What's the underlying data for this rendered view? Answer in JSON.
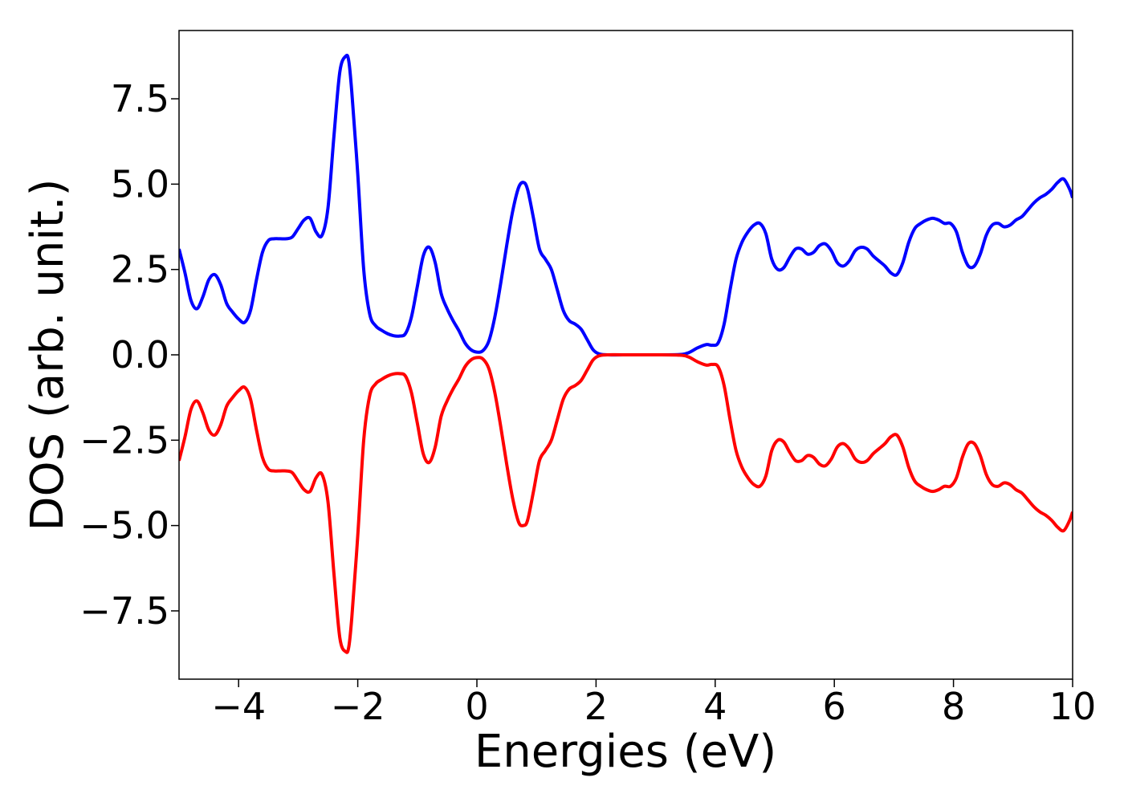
{
  "chart_data": {
    "type": "line",
    "title": "",
    "xlabel": "Energies (eV)",
    "ylabel": "DOS (arb. unit.)",
    "xlim": [
      -5,
      10
    ],
    "ylim": [
      -9.5,
      9.5
    ],
    "xticks": [
      -4,
      -2,
      0,
      2,
      4,
      6,
      8,
      10
    ],
    "xtick_labels": [
      "−4",
      "−2",
      "0",
      "2",
      "4",
      "6",
      "8",
      "10"
    ],
    "yticks": [
      7.5,
      5.0,
      2.5,
      0.0,
      -2.5,
      -5.0,
      -7.5
    ],
    "ytick_labels": [
      "7.5",
      "5.0",
      "2.5",
      "0.0",
      "−2.5",
      "−5.0",
      "−7.5"
    ],
    "grid": false,
    "legend": "none",
    "colors": {
      "up": "#0000ff",
      "down": "#ff0000",
      "axes": "#000000"
    },
    "series": [
      {
        "color": "#0000ff",
        "points": [
          [
            -5.0,
            3.1
          ],
          [
            -4.9,
            2.4
          ],
          [
            -4.8,
            1.6
          ],
          [
            -4.7,
            1.35
          ],
          [
            -4.6,
            1.7
          ],
          [
            -4.5,
            2.2
          ],
          [
            -4.4,
            2.35
          ],
          [
            -4.3,
            2.05
          ],
          [
            -4.2,
            1.5
          ],
          [
            -4.1,
            1.25
          ],
          [
            -4.0,
            1.05
          ],
          [
            -3.9,
            0.95
          ],
          [
            -3.8,
            1.3
          ],
          [
            -3.7,
            2.2
          ],
          [
            -3.6,
            3.0
          ],
          [
            -3.5,
            3.35
          ],
          [
            -3.4,
            3.4
          ],
          [
            -3.3,
            3.4
          ],
          [
            -3.2,
            3.4
          ],
          [
            -3.1,
            3.45
          ],
          [
            -3.0,
            3.7
          ],
          [
            -2.9,
            3.95
          ],
          [
            -2.8,
            4.0
          ],
          [
            -2.7,
            3.6
          ],
          [
            -2.6,
            3.5
          ],
          [
            -2.5,
            4.3
          ],
          [
            -2.4,
            6.4
          ],
          [
            -2.3,
            8.3
          ],
          [
            -2.2,
            8.75
          ],
          [
            -2.15,
            8.6
          ],
          [
            -2.1,
            7.7
          ],
          [
            -2.0,
            5.3
          ],
          [
            -1.9,
            2.5
          ],
          [
            -1.8,
            1.2
          ],
          [
            -1.7,
            0.85
          ],
          [
            -1.6,
            0.72
          ],
          [
            -1.5,
            0.62
          ],
          [
            -1.4,
            0.56
          ],
          [
            -1.3,
            0.55
          ],
          [
            -1.2,
            0.62
          ],
          [
            -1.1,
            1.1
          ],
          [
            -1.0,
            2.0
          ],
          [
            -0.9,
            2.9
          ],
          [
            -0.8,
            3.15
          ],
          [
            -0.7,
            2.7
          ],
          [
            -0.6,
            1.8
          ],
          [
            -0.5,
            1.35
          ],
          [
            -0.4,
            1.0
          ],
          [
            -0.3,
            0.7
          ],
          [
            -0.2,
            0.35
          ],
          [
            -0.1,
            0.15
          ],
          [
            0.0,
            0.08
          ],
          [
            0.1,
            0.12
          ],
          [
            0.2,
            0.4
          ],
          [
            0.3,
            1.1
          ],
          [
            0.4,
            2.1
          ],
          [
            0.5,
            3.2
          ],
          [
            0.6,
            4.2
          ],
          [
            0.7,
            4.9
          ],
          [
            0.78,
            5.05
          ],
          [
            0.85,
            4.85
          ],
          [
            0.95,
            4.0
          ],
          [
            1.05,
            3.1
          ],
          [
            1.15,
            2.8
          ],
          [
            1.25,
            2.5
          ],
          [
            1.35,
            1.9
          ],
          [
            1.45,
            1.3
          ],
          [
            1.55,
            1.0
          ],
          [
            1.65,
            0.9
          ],
          [
            1.75,
            0.75
          ],
          [
            1.85,
            0.45
          ],
          [
            1.95,
            0.15
          ],
          [
            2.05,
            0.03
          ],
          [
            2.2,
            0.0
          ],
          [
            2.6,
            0.0
          ],
          [
            3.0,
            0.0
          ],
          [
            3.4,
            0.01
          ],
          [
            3.55,
            0.06
          ],
          [
            3.7,
            0.2
          ],
          [
            3.85,
            0.3
          ],
          [
            3.95,
            0.28
          ],
          [
            4.05,
            0.35
          ],
          [
            4.15,
            0.9
          ],
          [
            4.25,
            1.9
          ],
          [
            4.35,
            2.8
          ],
          [
            4.45,
            3.3
          ],
          [
            4.55,
            3.6
          ],
          [
            4.65,
            3.8
          ],
          [
            4.75,
            3.85
          ],
          [
            4.85,
            3.55
          ],
          [
            4.95,
            2.8
          ],
          [
            5.05,
            2.5
          ],
          [
            5.15,
            2.55
          ],
          [
            5.25,
            2.85
          ],
          [
            5.35,
            3.1
          ],
          [
            5.45,
            3.1
          ],
          [
            5.55,
            2.95
          ],
          [
            5.65,
            3.0
          ],
          [
            5.75,
            3.2
          ],
          [
            5.85,
            3.25
          ],
          [
            5.95,
            3.05
          ],
          [
            6.05,
            2.7
          ],
          [
            6.15,
            2.6
          ],
          [
            6.25,
            2.75
          ],
          [
            6.35,
            3.05
          ],
          [
            6.45,
            3.15
          ],
          [
            6.55,
            3.1
          ],
          [
            6.65,
            2.9
          ],
          [
            6.75,
            2.75
          ],
          [
            6.85,
            2.6
          ],
          [
            6.95,
            2.4
          ],
          [
            7.05,
            2.35
          ],
          [
            7.15,
            2.7
          ],
          [
            7.25,
            3.3
          ],
          [
            7.35,
            3.7
          ],
          [
            7.45,
            3.85
          ],
          [
            7.55,
            3.95
          ],
          [
            7.65,
            4.0
          ],
          [
            7.75,
            3.95
          ],
          [
            7.85,
            3.85
          ],
          [
            7.95,
            3.85
          ],
          [
            8.05,
            3.6
          ],
          [
            8.15,
            3.0
          ],
          [
            8.25,
            2.6
          ],
          [
            8.35,
            2.6
          ],
          [
            8.45,
            2.95
          ],
          [
            8.55,
            3.5
          ],
          [
            8.65,
            3.8
          ],
          [
            8.75,
            3.85
          ],
          [
            8.85,
            3.75
          ],
          [
            8.95,
            3.8
          ],
          [
            9.05,
            3.95
          ],
          [
            9.15,
            4.05
          ],
          [
            9.25,
            4.25
          ],
          [
            9.35,
            4.45
          ],
          [
            9.45,
            4.6
          ],
          [
            9.55,
            4.7
          ],
          [
            9.65,
            4.85
          ],
          [
            9.75,
            5.05
          ],
          [
            9.85,
            5.15
          ],
          [
            9.95,
            4.85
          ],
          [
            10.0,
            4.6
          ]
        ]
      },
      {
        "color": "#ff0000",
        "points": [
          [
            -5.0,
            -3.1
          ],
          [
            -4.9,
            -2.4
          ],
          [
            -4.8,
            -1.6
          ],
          [
            -4.7,
            -1.35
          ],
          [
            -4.6,
            -1.7
          ],
          [
            -4.5,
            -2.2
          ],
          [
            -4.4,
            -2.35
          ],
          [
            -4.3,
            -2.05
          ],
          [
            -4.2,
            -1.5
          ],
          [
            -4.1,
            -1.25
          ],
          [
            -4.0,
            -1.05
          ],
          [
            -3.9,
            -0.95
          ],
          [
            -3.8,
            -1.3
          ],
          [
            -3.7,
            -2.2
          ],
          [
            -3.6,
            -3.0
          ],
          [
            -3.5,
            -3.35
          ],
          [
            -3.4,
            -3.4
          ],
          [
            -3.3,
            -3.4
          ],
          [
            -3.2,
            -3.4
          ],
          [
            -3.1,
            -3.45
          ],
          [
            -3.0,
            -3.7
          ],
          [
            -2.9,
            -3.95
          ],
          [
            -2.8,
            -4.0
          ],
          [
            -2.7,
            -3.6
          ],
          [
            -2.6,
            -3.5
          ],
          [
            -2.5,
            -4.3
          ],
          [
            -2.4,
            -6.4
          ],
          [
            -2.3,
            -8.3
          ],
          [
            -2.2,
            -8.7
          ],
          [
            -2.15,
            -8.55
          ],
          [
            -2.1,
            -7.7
          ],
          [
            -2.0,
            -5.3
          ],
          [
            -1.9,
            -2.5
          ],
          [
            -1.8,
            -1.2
          ],
          [
            -1.7,
            -0.85
          ],
          [
            -1.6,
            -0.72
          ],
          [
            -1.5,
            -0.62
          ],
          [
            -1.4,
            -0.56
          ],
          [
            -1.3,
            -0.55
          ],
          [
            -1.2,
            -0.62
          ],
          [
            -1.1,
            -1.1
          ],
          [
            -1.0,
            -2.0
          ],
          [
            -0.9,
            -2.9
          ],
          [
            -0.8,
            -3.15
          ],
          [
            -0.7,
            -2.7
          ],
          [
            -0.6,
            -1.8
          ],
          [
            -0.5,
            -1.35
          ],
          [
            -0.4,
            -1.0
          ],
          [
            -0.3,
            -0.7
          ],
          [
            -0.2,
            -0.35
          ],
          [
            -0.1,
            -0.15
          ],
          [
            0.0,
            -0.08
          ],
          [
            0.1,
            -0.12
          ],
          [
            0.2,
            -0.4
          ],
          [
            0.3,
            -1.1
          ],
          [
            0.4,
            -2.1
          ],
          [
            0.5,
            -3.2
          ],
          [
            0.6,
            -4.2
          ],
          [
            0.7,
            -4.9
          ],
          [
            0.78,
            -5.0
          ],
          [
            0.85,
            -4.85
          ],
          [
            0.95,
            -4.0
          ],
          [
            1.05,
            -3.1
          ],
          [
            1.15,
            -2.8
          ],
          [
            1.25,
            -2.5
          ],
          [
            1.35,
            -1.9
          ],
          [
            1.45,
            -1.3
          ],
          [
            1.55,
            -1.0
          ],
          [
            1.65,
            -0.9
          ],
          [
            1.75,
            -0.75
          ],
          [
            1.85,
            -0.45
          ],
          [
            1.95,
            -0.15
          ],
          [
            2.05,
            -0.03
          ],
          [
            2.2,
            0.0
          ],
          [
            2.6,
            0.0
          ],
          [
            3.0,
            0.0
          ],
          [
            3.4,
            -0.01
          ],
          [
            3.55,
            -0.06
          ],
          [
            3.7,
            -0.2
          ],
          [
            3.85,
            -0.3
          ],
          [
            3.95,
            -0.28
          ],
          [
            4.05,
            -0.35
          ],
          [
            4.15,
            -0.9
          ],
          [
            4.25,
            -1.9
          ],
          [
            4.35,
            -2.8
          ],
          [
            4.45,
            -3.3
          ],
          [
            4.55,
            -3.6
          ],
          [
            4.65,
            -3.8
          ],
          [
            4.75,
            -3.85
          ],
          [
            4.85,
            -3.55
          ],
          [
            4.95,
            -2.8
          ],
          [
            5.05,
            -2.5
          ],
          [
            5.15,
            -2.55
          ],
          [
            5.25,
            -2.85
          ],
          [
            5.35,
            -3.1
          ],
          [
            5.45,
            -3.1
          ],
          [
            5.55,
            -2.95
          ],
          [
            5.65,
            -3.0
          ],
          [
            5.75,
            -3.2
          ],
          [
            5.85,
            -3.25
          ],
          [
            5.95,
            -3.05
          ],
          [
            6.05,
            -2.7
          ],
          [
            6.15,
            -2.6
          ],
          [
            6.25,
            -2.75
          ],
          [
            6.35,
            -3.05
          ],
          [
            6.45,
            -3.15
          ],
          [
            6.55,
            -3.1
          ],
          [
            6.65,
            -2.9
          ],
          [
            6.75,
            -2.75
          ],
          [
            6.85,
            -2.6
          ],
          [
            6.95,
            -2.4
          ],
          [
            7.05,
            -2.35
          ],
          [
            7.15,
            -2.7
          ],
          [
            7.25,
            -3.3
          ],
          [
            7.35,
            -3.7
          ],
          [
            7.45,
            -3.85
          ],
          [
            7.55,
            -3.95
          ],
          [
            7.65,
            -4.0
          ],
          [
            7.75,
            -3.95
          ],
          [
            7.85,
            -3.85
          ],
          [
            7.95,
            -3.85
          ],
          [
            8.05,
            -3.6
          ],
          [
            8.15,
            -3.0
          ],
          [
            8.25,
            -2.6
          ],
          [
            8.35,
            -2.6
          ],
          [
            8.45,
            -2.95
          ],
          [
            8.55,
            -3.5
          ],
          [
            8.65,
            -3.8
          ],
          [
            8.75,
            -3.85
          ],
          [
            8.85,
            -3.75
          ],
          [
            8.95,
            -3.8
          ],
          [
            9.05,
            -3.95
          ],
          [
            9.15,
            -4.05
          ],
          [
            9.25,
            -4.25
          ],
          [
            9.35,
            -4.45
          ],
          [
            9.45,
            -4.6
          ],
          [
            9.55,
            -4.7
          ],
          [
            9.65,
            -4.85
          ],
          [
            9.75,
            -5.05
          ],
          [
            9.85,
            -5.15
          ],
          [
            9.95,
            -4.85
          ],
          [
            10.0,
            -4.6
          ]
        ]
      }
    ]
  }
}
